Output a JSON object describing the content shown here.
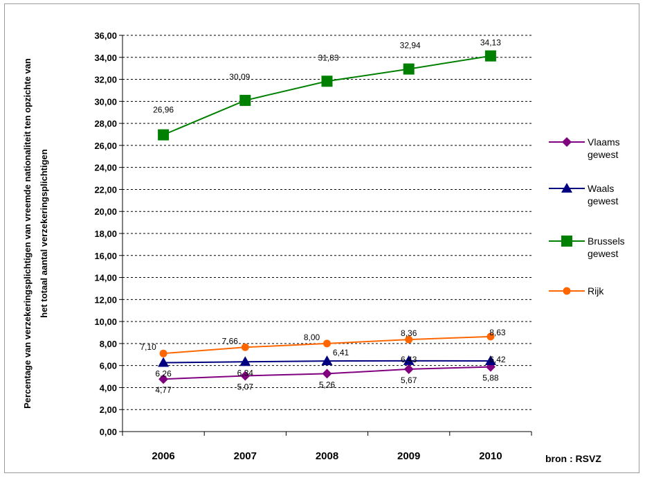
{
  "chart_data": {
    "type": "line",
    "ylabel": [
      "Percentage van verzekeringsplichtigen van vreemde nationaliteit ten opzichte van",
      "het totaal aantal verzekeringsplichtigen"
    ],
    "source": "bron : RSVZ",
    "ylim": [
      0,
      36
    ],
    "ytick_step": 2,
    "categories": [
      "2006",
      "2007",
      "2008",
      "2009",
      "2010"
    ],
    "yticks": [
      "0,00",
      "2,00",
      "4,00",
      "6,00",
      "8,00",
      "10,00",
      "12,00",
      "14,00",
      "16,00",
      "18,00",
      "20,00",
      "22,00",
      "24,00",
      "26,00",
      "28,00",
      "30,00",
      "32,00",
      "34,00",
      "36,00"
    ],
    "grid": true,
    "legend_position": "right",
    "series": [
      {
        "name": [
          "Vlaams",
          "gewest"
        ],
        "color": "#800080",
        "marker": "diamond",
        "values": [
          4.77,
          5.07,
          5.26,
          5.67,
          5.88
        ],
        "labels": [
          "4,77",
          "5,07",
          "5,26",
          "5,67",
          "5,88"
        ]
      },
      {
        "name": [
          "Waals",
          "gewest"
        ],
        "color": "#000080",
        "marker": "triangle",
        "values": [
          6.26,
          6.34,
          6.41,
          6.43,
          6.42
        ],
        "labels": [
          "6,26",
          "6,34",
          "6,41",
          "6,43",
          "6,42"
        ]
      },
      {
        "name": [
          "Brussels",
          "gewest"
        ],
        "color": "#008000",
        "marker": "square",
        "values": [
          26.96,
          30.09,
          31.83,
          32.94,
          34.13
        ],
        "labels": [
          "26,96",
          "30,09",
          "31,83",
          "32,94",
          "34,13"
        ]
      },
      {
        "name": [
          "Rijk"
        ],
        "color": "#FF6600",
        "marker": "circle",
        "values": [
          7.1,
          7.66,
          8.0,
          8.36,
          8.63
        ],
        "labels": [
          "7,10",
          "7,66",
          "8,00",
          "8,36",
          "8,63"
        ]
      }
    ]
  }
}
